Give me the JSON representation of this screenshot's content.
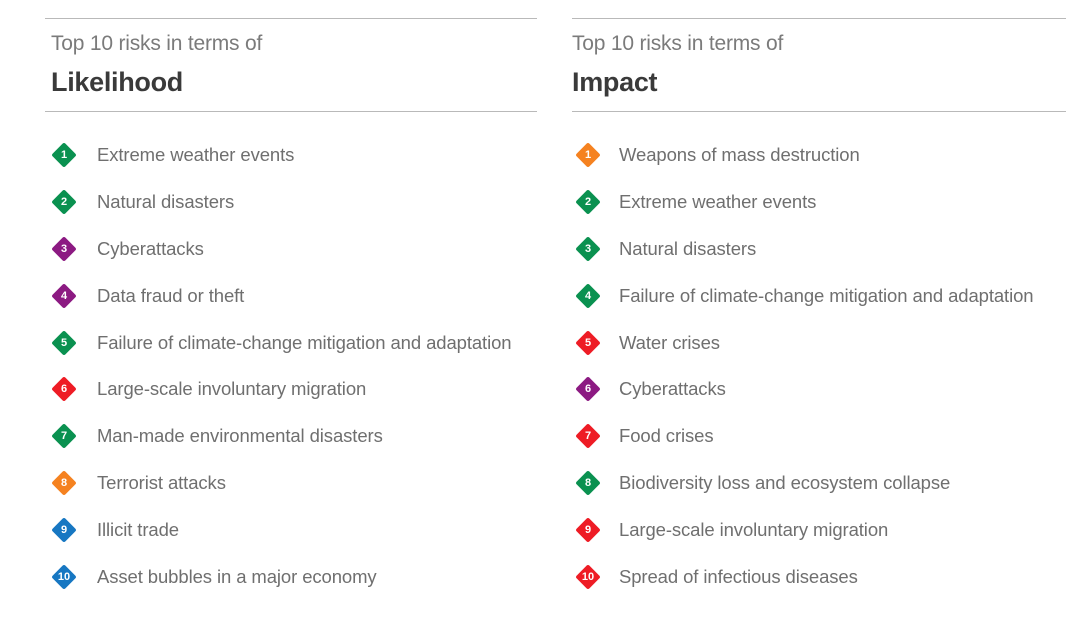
{
  "colors": {
    "environmental": "#0a9150",
    "technological": "#8c1a82",
    "societal": "#ee1c25",
    "geopolitical": "#f58220",
    "economic": "#1777c2"
  },
  "likelihood": {
    "subtitle": "Top 10 risks in terms of",
    "title": "Likelihood",
    "items": [
      {
        "rank": "1",
        "label": "Extreme weather events",
        "category": "environmental"
      },
      {
        "rank": "2",
        "label": "Natural disasters",
        "category": "environmental"
      },
      {
        "rank": "3",
        "label": "Cyberattacks",
        "category": "technological"
      },
      {
        "rank": "4",
        "label": "Data fraud or theft",
        "category": "technological"
      },
      {
        "rank": "5",
        "label": "Failure of climate-change mitigation and adaptation",
        "category": "environmental"
      },
      {
        "rank": "6",
        "label": "Large-scale involuntary migration",
        "category": "societal"
      },
      {
        "rank": "7",
        "label": "Man-made environmental disasters",
        "category": "environmental"
      },
      {
        "rank": "8",
        "label": "Terrorist attacks",
        "category": "geopolitical"
      },
      {
        "rank": "9",
        "label": "Illicit trade",
        "category": "economic"
      },
      {
        "rank": "10",
        "label": "Asset bubbles in a major economy",
        "category": "economic"
      }
    ]
  },
  "impact": {
    "subtitle": "Top 10 risks in terms of",
    "title": "Impact",
    "items": [
      {
        "rank": "1",
        "label": "Weapons of mass destruction",
        "category": "geopolitical"
      },
      {
        "rank": "2",
        "label": "Extreme weather events",
        "category": "environmental"
      },
      {
        "rank": "3",
        "label": "Natural disasters",
        "category": "environmental"
      },
      {
        "rank": "4",
        "label": "Failure of climate-change mitigation and adaptation",
        "category": "environmental"
      },
      {
        "rank": "5",
        "label": "Water crises",
        "category": "societal"
      },
      {
        "rank": "6",
        "label": "Cyberattacks",
        "category": "technological"
      },
      {
        "rank": "7",
        "label": "Food crises",
        "category": "societal"
      },
      {
        "rank": "8",
        "label": "Biodiversity loss and ecosystem collapse",
        "category": "environmental"
      },
      {
        "rank": "9",
        "label": "Large-scale involuntary migration",
        "category": "societal"
      },
      {
        "rank": "10",
        "label": "Spread of infectious diseases",
        "category": "societal"
      }
    ]
  }
}
